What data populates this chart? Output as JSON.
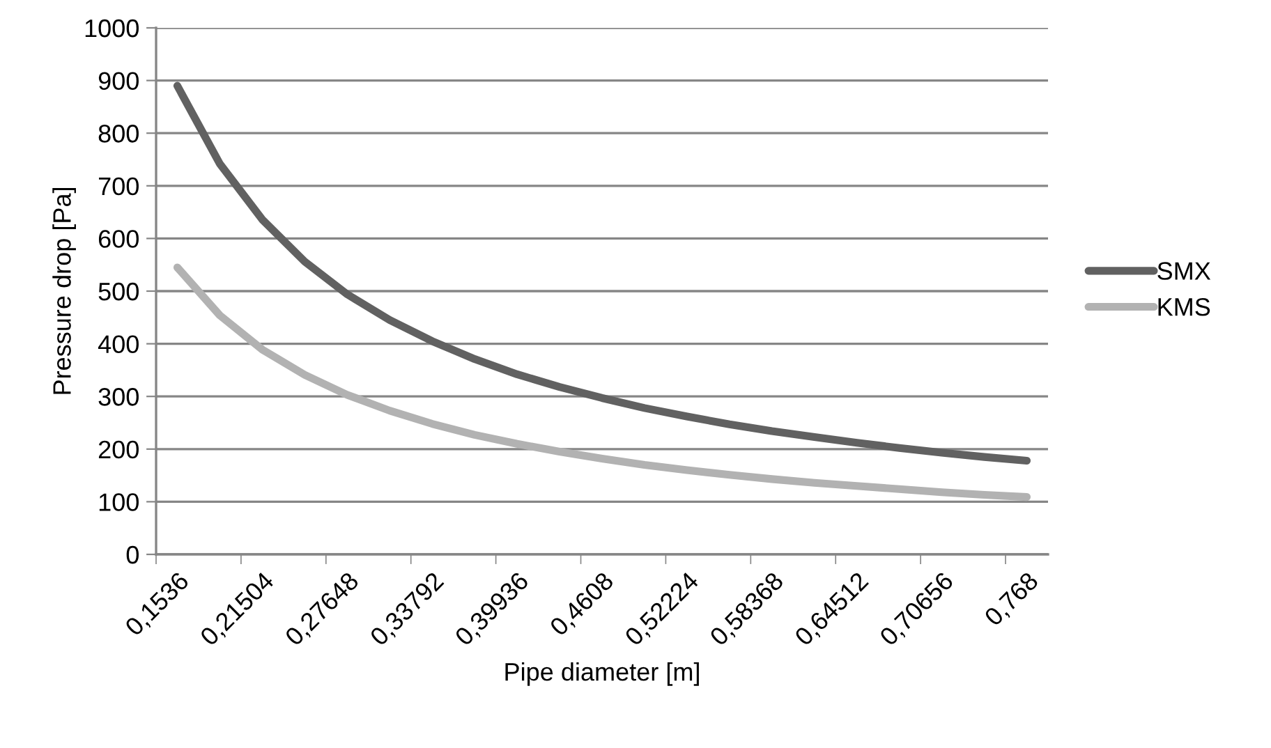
{
  "chart_data": {
    "type": "line",
    "xlabel": "Pipe diameter [m]",
    "ylabel": "Pressure drop [Pa]",
    "categories": [
      "0,1536",
      null,
      "0,21504",
      null,
      "0,27648",
      null,
      "0,33792",
      null,
      "0,39936",
      null,
      "0,4608",
      null,
      "0,52224",
      null,
      "0,58368",
      null,
      "0,64512",
      null,
      "0,70656",
      null,
      "0,768"
    ],
    "series": [
      {
        "name": "SMX",
        "color": "#616161",
        "values": [
          890,
          742,
          636,
          556,
          494,
          445,
          405,
          371,
          342,
          318,
          297,
          278,
          262,
          247,
          234,
          223,
          212,
          202,
          193,
          185,
          178
        ]
      },
      {
        "name": "KMS",
        "color": "#b2b2b2",
        "values": [
          545,
          454,
          389,
          341,
          303,
          273,
          248,
          227,
          210,
          195,
          182,
          170,
          160,
          151,
          143,
          136,
          130,
          124,
          118,
          113,
          109
        ]
      }
    ],
    "ylim": [
      0,
      1000
    ],
    "yticks": [
      0,
      100,
      200,
      300,
      400,
      500,
      600,
      700,
      800,
      900,
      1000
    ],
    "grid": "y",
    "legend": "right",
    "marker": "none",
    "line_style": "solid"
  }
}
